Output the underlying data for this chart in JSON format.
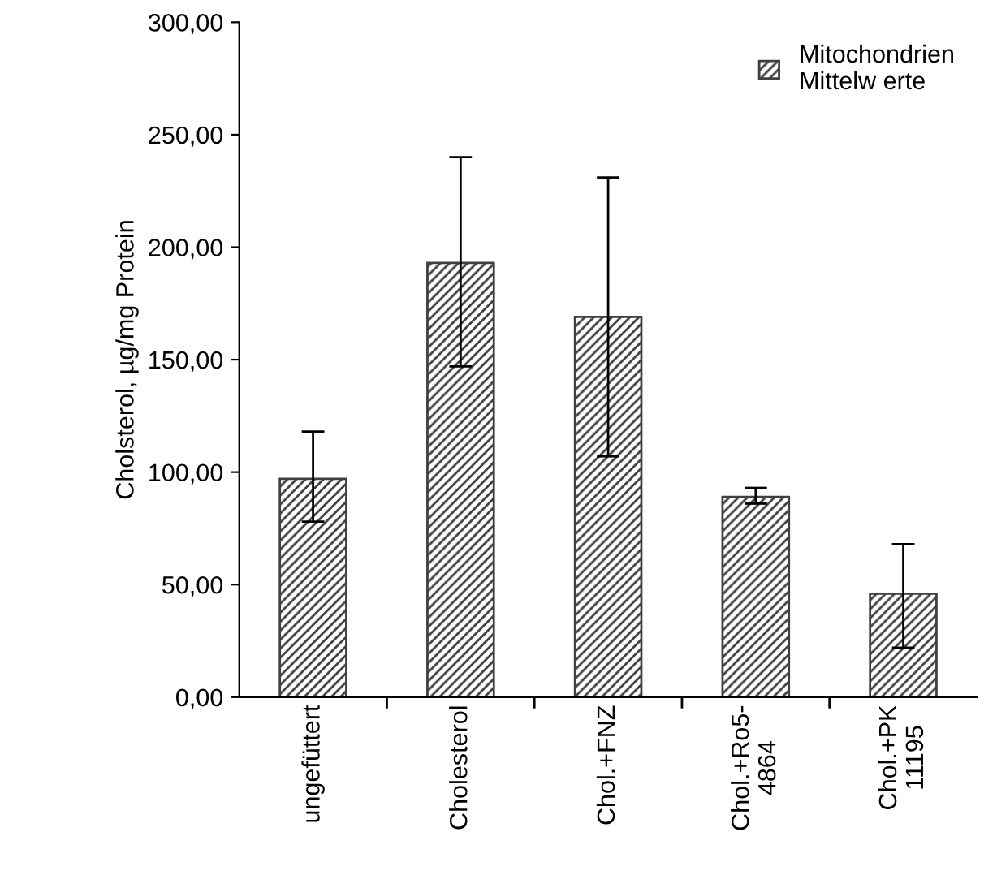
{
  "chart_data": {
    "type": "bar",
    "ylabel": "Cholsterol, µg/mg Protein",
    "categories": [
      "ungefüttert",
      "Cholesterol",
      "Chol.+FNZ",
      "Chol.+Ro5-\n4864",
      "Chol.+PK\n11195"
    ],
    "series": [
      {
        "name": "Mitochondrien\nMittelw erte",
        "color": "#404040",
        "values": [
          97,
          193,
          169,
          89,
          46
        ],
        "errors": [
          [
            78,
            118
          ],
          [
            147,
            240
          ],
          [
            107,
            231
          ],
          [
            86,
            93
          ],
          [
            22,
            68
          ]
        ]
      }
    ],
    "ylim": [
      0,
      300
    ],
    "yticks": [
      {
        "value": 0,
        "label": "0,00"
      },
      {
        "value": 50,
        "label": "50,00"
      },
      {
        "value": 100,
        "label": "100,00"
      },
      {
        "value": 150,
        "label": "150,00"
      },
      {
        "value": 200,
        "label": "200,00"
      },
      {
        "value": 250,
        "label": "250,00"
      },
      {
        "value": 300,
        "label": "300,00"
      }
    ],
    "grid": false,
    "legend": "top right"
  }
}
